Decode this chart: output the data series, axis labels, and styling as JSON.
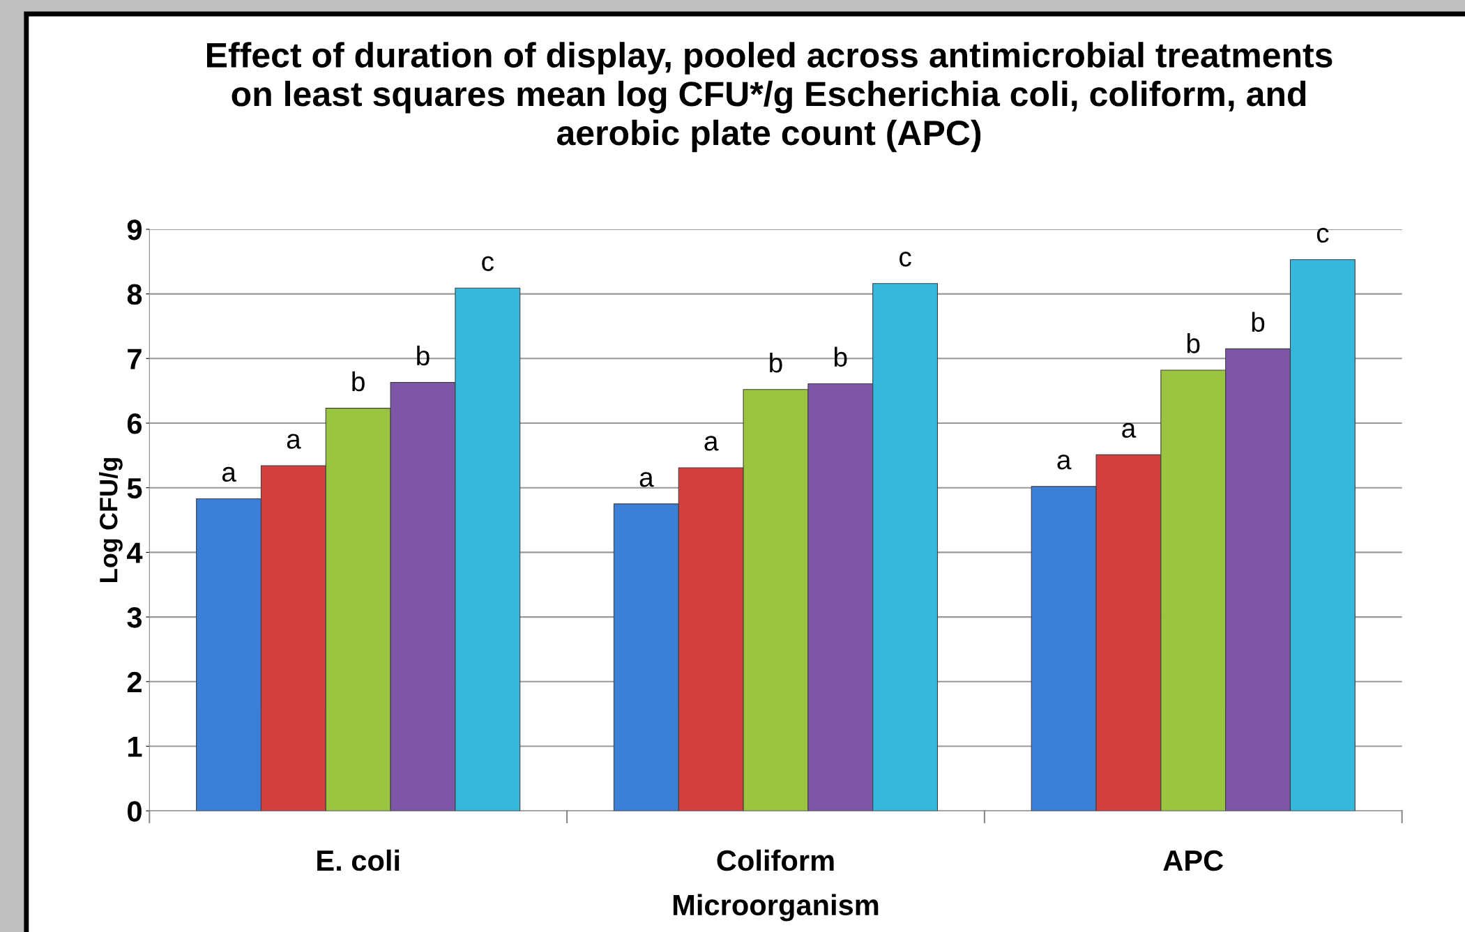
{
  "chart_data": {
    "type": "bar",
    "title": "Effect of duration of display, pooled across antimicrobial treatments on least squares mean log CFU*/g Escherichia coli, coliform, and aerobic plate count (APC)",
    "xlabel": "Microorganism",
    "ylabel": "Log CFU/g",
    "categories": [
      "E. coli",
      "Coliform",
      "APC"
    ],
    "series": [
      {
        "color": "#3c7fd6",
        "values": [
          4.83,
          4.75,
          5.02
        ],
        "value_labels": [
          "a",
          "a",
          "a"
        ]
      },
      {
        "color": "#d43f3f",
        "values": [
          5.34,
          5.31,
          5.51
        ],
        "value_labels": [
          "a",
          "a",
          "a"
        ]
      },
      {
        "color": "#9bc440",
        "values": [
          6.23,
          6.52,
          6.82
        ],
        "value_labels": [
          "b",
          "b",
          "b"
        ]
      },
      {
        "color": "#7d56a6",
        "values": [
          6.63,
          6.61,
          7.15
        ],
        "value_labels": [
          "b",
          "b",
          "b"
        ]
      },
      {
        "color": "#35b8dc",
        "values": [
          8.09,
          8.16,
          8.53
        ],
        "value_labels": [
          "c",
          "c",
          "c"
        ]
      }
    ],
    "ylim": [
      0,
      9
    ],
    "yticks": [
      0,
      1,
      2,
      3,
      4,
      5,
      6,
      7,
      8,
      9
    ],
    "grid": "y"
  }
}
